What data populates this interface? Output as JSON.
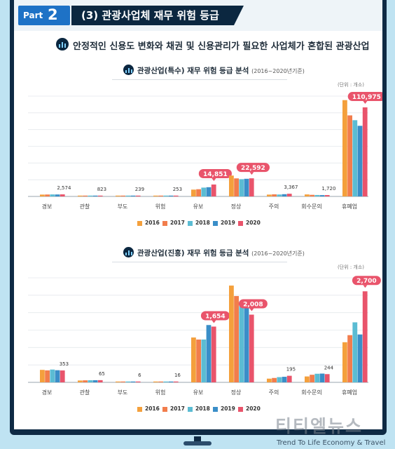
{
  "header": {
    "part_word": "Part",
    "part_num": "2",
    "title": "(3) 관광사업체 재무 위험 등급"
  },
  "headline": "안정적인 신용도 변화와 채권 및 신용관리가 필요한 사업체가 혼합된 관광산업",
  "colors": {
    "2016": "#f4a03c",
    "2017": "#f27d4c",
    "2018": "#5bbcd3",
    "2019": "#3a8ec8",
    "2020": "#e9546b"
  },
  "watermark": {
    "brand": "티티엘뉴스",
    "tagline": "Trend To Life Economy & Travel"
  },
  "chart_data": [
    {
      "type": "bar",
      "title": "관광산업(특수) 재무 위험 등급 분석",
      "subtitle": "(2016~2020년기준)",
      "unit_label": "(단위 : 개소)",
      "categories": [
        "경보",
        "관찰",
        "부도",
        "위험",
        "유보",
        "정상",
        "주의",
        "회수문의",
        "휴폐업"
      ],
      "ylim": [
        0,
        125000
      ],
      "series": [
        {
          "name": "2016",
          "values": [
            2300,
            600,
            180,
            210,
            8500,
            26000,
            2300,
            2500,
            120000
          ]
        },
        {
          "name": "2017",
          "values": [
            2400,
            650,
            200,
            220,
            9000,
            22500,
            2600,
            2000,
            101000
          ]
        },
        {
          "name": "2018",
          "values": [
            2500,
            700,
            210,
            230,
            11000,
            21500,
            2400,
            1800,
            95000
          ]
        },
        {
          "name": "2019",
          "values": [
            2450,
            760,
            225,
            240,
            11500,
            22000,
            2800,
            1650,
            88000
          ]
        },
        {
          "name": "2020",
          "values": [
            2574,
            823,
            239,
            253,
            14851,
            22592,
            3367,
            1720,
            110975
          ]
        }
      ],
      "data_labels": [
        {
          "label": "2,574",
          "boxed": false
        },
        {
          "label": "823",
          "boxed": false
        },
        {
          "label": "239",
          "boxed": false
        },
        {
          "label": "253",
          "boxed": false
        },
        {
          "label": "14,851",
          "boxed": true
        },
        {
          "label": "22,592",
          "boxed": true
        },
        {
          "label": "3,367",
          "boxed": false
        },
        {
          "label": "1,720",
          "boxed": false
        },
        {
          "label": "110,975",
          "boxed": true
        }
      ]
    },
    {
      "type": "bar",
      "title": "관광산업(진흥) 재무 위험 등급 분석",
      "subtitle": "(2016~2020년기준)",
      "unit_label": "(단위 : 개소)",
      "categories": [
        "경보",
        "관찰",
        "부도",
        "위험",
        "유보",
        "정상",
        "주의",
        "회수문의",
        "휴폐업"
      ],
      "ylim": [
        0,
        3100
      ],
      "series": [
        {
          "name": "2016",
          "values": [
            370,
            55,
            5,
            14,
            1330,
            2870,
            110,
            175,
            1190
          ]
        },
        {
          "name": "2017",
          "values": [
            355,
            60,
            5,
            14,
            1270,
            2560,
            130,
            225,
            1400
          ]
        },
        {
          "name": "2018",
          "values": [
            380,
            62,
            6,
            15,
            1270,
            2390,
            155,
            255,
            1780
          ]
        },
        {
          "name": "2019",
          "values": [
            360,
            64,
            6,
            15,
            1700,
            2320,
            165,
            260,
            1420
          ]
        },
        {
          "name": "2020",
          "values": [
            353,
            65,
            6,
            16,
            1654,
            2008,
            195,
            244,
            2700
          ]
        }
      ],
      "data_labels": [
        {
          "label": "353",
          "boxed": false
        },
        {
          "label": "65",
          "boxed": false
        },
        {
          "label": "6",
          "boxed": false
        },
        {
          "label": "16",
          "boxed": false
        },
        {
          "label": "1,654",
          "boxed": true
        },
        {
          "label": "2,008",
          "boxed": true
        },
        {
          "label": "195",
          "boxed": false
        },
        {
          "label": "244",
          "boxed": false
        },
        {
          "label": "2,700",
          "boxed": true
        }
      ]
    }
  ]
}
